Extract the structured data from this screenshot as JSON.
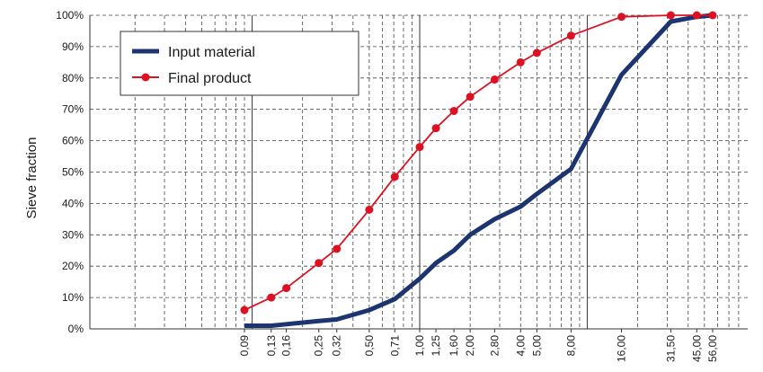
{
  "chart_data": {
    "type": "line",
    "xscale": "log",
    "ylabel": "Sieve fraction",
    "xlabel": "",
    "ylim": [
      0,
      100
    ],
    "grid": true,
    "legend_position": "top-left",
    "y_ticks": [
      "0%",
      "10%",
      "20%",
      "30%",
      "40%",
      "50%",
      "60%",
      "70%",
      "80%",
      "90%",
      "100%"
    ],
    "x_tick_labels": [
      "0,09",
      "0,13",
      "0,16",
      "0,25",
      "0,32",
      "0,50",
      "0,71",
      "1,00",
      "1,25",
      "1,60",
      "2,00",
      "2,80",
      "4,00",
      "5,00",
      "8,00",
      "16,00",
      "31,50",
      "45,00",
      "56,00"
    ],
    "x_tick_values": [
      0.09,
      0.13,
      0.16,
      0.25,
      0.32,
      0.5,
      0.71,
      1.0,
      1.25,
      1.6,
      2.0,
      2.8,
      4.0,
      5.0,
      8.0,
      16.0,
      31.5,
      45.0,
      56.0
    ],
    "series": [
      {
        "name": "Input material",
        "color": "#1c3470",
        "marker": "none",
        "x": [
          0.09,
          0.13,
          0.16,
          0.25,
          0.32,
          0.5,
          0.71,
          1.0,
          1.25,
          1.6,
          2.0,
          2.8,
          4.0,
          5.0,
          8.0,
          16.0,
          31.5,
          45.0,
          56.0
        ],
        "values": [
          1,
          1,
          1.5,
          2.5,
          3,
          6,
          9.5,
          16,
          21,
          25,
          30,
          35,
          39,
          43,
          51,
          81,
          98,
          99.5,
          100
        ]
      },
      {
        "name": "Final product",
        "color": "#dd1122",
        "marker": "circle",
        "x": [
          0.09,
          0.13,
          0.16,
          0.25,
          0.32,
          0.5,
          0.71,
          1.0,
          1.25,
          1.6,
          2.0,
          2.8,
          4.0,
          5.0,
          8.0,
          16.0,
          31.5,
          45.0,
          56.0
        ],
        "values": [
          6,
          10,
          13,
          21,
          25.5,
          38,
          48.5,
          58,
          64,
          69.5,
          74,
          79.5,
          85,
          88,
          93.5,
          99.5,
          100,
          100,
          100
        ]
      }
    ]
  }
}
